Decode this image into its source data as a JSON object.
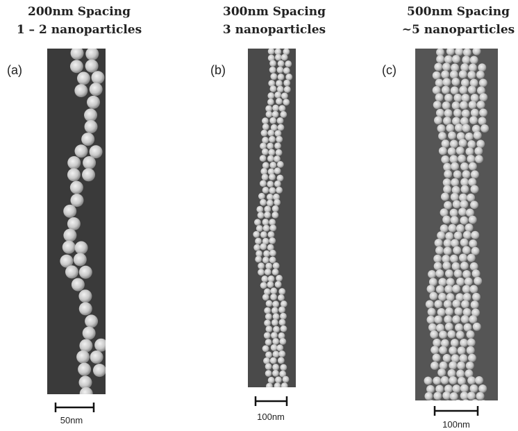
{
  "panels": [
    {
      "title": [
        "200nm Spacing",
        "1 – 2 nanoparticles"
      ],
      "label": "(a)",
      "scale_bar": "50nm"
    },
    {
      "title": [
        "300nm Spacing",
        "3 nanoparticles"
      ],
      "label": "(b)",
      "scale_bar": "100nm"
    },
    {
      "title": [
        "500nm Spacing",
        "~5 nanoparticles"
      ],
      "label": "(c)",
      "scale_bar": "100nm"
    }
  ]
}
